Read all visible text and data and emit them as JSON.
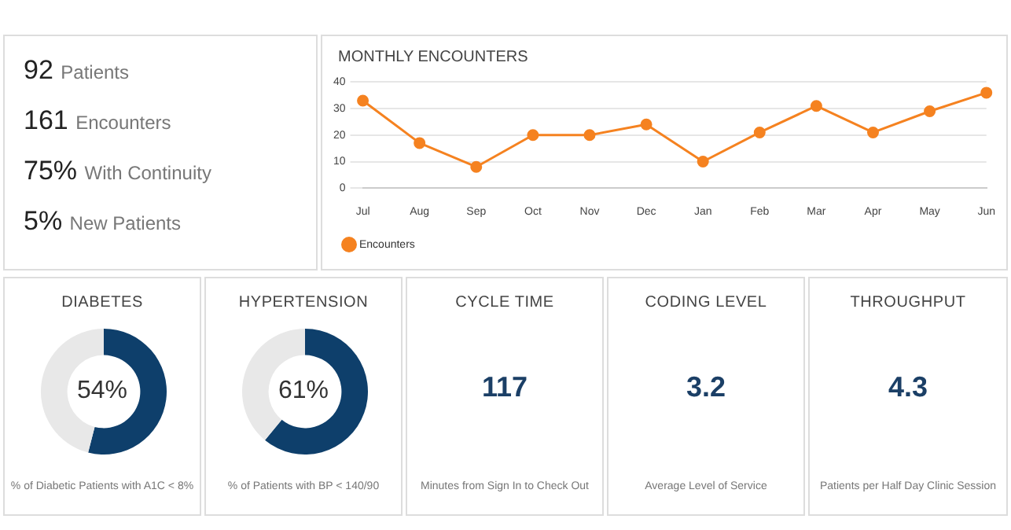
{
  "chart_data": [
    {
      "type": "other",
      "annotations": [
        "92 Patients",
        "161 Encounters",
        "75% With Continuity",
        "5% New Patients"
      ]
    },
    {
      "type": "line",
      "title": "MONTHLY ENCOUNTERS",
      "categories": [
        "Jul",
        "Aug",
        "Sep",
        "Oct",
        "Nov",
        "Dec",
        "Jan",
        "Feb",
        "Mar",
        "Apr",
        "May",
        "Jun"
      ],
      "series": [
        {
          "name": "Encounters",
          "color": "#f58220",
          "values": [
            33,
            17,
            8,
            20,
            20,
            24,
            10,
            21,
            31,
            21,
            29,
            36
          ]
        }
      ],
      "ylim": [
        0,
        40
      ],
      "yticks": [
        0,
        10,
        20,
        30,
        40
      ],
      "grid": "y",
      "legend": "bottom",
      "marker": "circle"
    },
    {
      "type": "donut",
      "title": "DIABETES",
      "categories": [
        null,
        null
      ],
      "values": [
        54,
        46
      ],
      "colors": [
        "#0e3f6b",
        "#e8e8e8"
      ],
      "annotations": [
        "54%",
        "% of Diabetic Patients with A1C < 8%"
      ]
    },
    {
      "type": "donut",
      "title": "HYPERTENSION",
      "categories": [
        null,
        null
      ],
      "values": [
        61,
        39
      ],
      "colors": [
        "#0e3f6b",
        "#e8e8e8"
      ],
      "annotations": [
        "61%",
        "% of Patients with BP < 140/90"
      ]
    },
    {
      "type": "other",
      "title": "CYCLE TIME",
      "annotations": [
        "117",
        "Minutes from Sign In to Check Out"
      ]
    },
    {
      "type": "other",
      "title": "CODING LEVEL",
      "annotations": [
        "3.2",
        "Average Level of Service"
      ]
    },
    {
      "type": "other",
      "title": "THROUGHPUT",
      "annotations": [
        "4.3",
        "Patients per Half Day Clinic Session"
      ]
    }
  ]
}
